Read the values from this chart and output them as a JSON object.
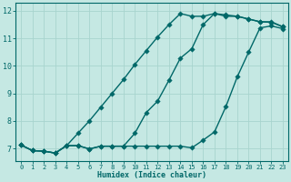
{
  "background_color": "#c5e8e3",
  "grid_color": "#a8d4ce",
  "line_color": "#006868",
  "xlabel": "Humidex (Indice chaleur)",
  "xlim": [
    -0.5,
    23.5
  ],
  "ylim": [
    6.55,
    12.3
  ],
  "yticks": [
    7,
    8,
    9,
    10,
    11,
    12
  ],
  "xticks": [
    0,
    1,
    2,
    3,
    4,
    5,
    6,
    7,
    8,
    9,
    10,
    11,
    12,
    13,
    14,
    15,
    16,
    17,
    18,
    19,
    20,
    21,
    22,
    23
  ],
  "line1_x": [
    0,
    1,
    2,
    3,
    4,
    5,
    6,
    7,
    8,
    9,
    10,
    11,
    12,
    13,
    14,
    15,
    16,
    17,
    18,
    19,
    20,
    21,
    22,
    23
  ],
  "line1_y": [
    7.12,
    6.92,
    6.9,
    6.83,
    7.1,
    7.1,
    6.98,
    7.08,
    7.08,
    7.08,
    7.08,
    7.08,
    7.08,
    7.08,
    7.08,
    7.02,
    7.3,
    7.6,
    8.52,
    9.6,
    10.5,
    11.38,
    11.45,
    11.35
  ],
  "line2_x": [
    0,
    1,
    2,
    3,
    4,
    5,
    6,
    7,
    8,
    9,
    10,
    11,
    12,
    13,
    14,
    15,
    16,
    17,
    18,
    19,
    20,
    21,
    22,
    23
  ],
  "line2_y": [
    7.12,
    6.92,
    6.9,
    6.83,
    7.1,
    7.55,
    8.0,
    8.5,
    9.0,
    9.5,
    10.05,
    10.55,
    11.05,
    11.5,
    11.9,
    11.8,
    11.8,
    11.9,
    11.85,
    11.8,
    11.7,
    11.6,
    11.58,
    11.42
  ],
  "line3_x": [
    0,
    1,
    2,
    3,
    4,
    5,
    6,
    7,
    8,
    9,
    10,
    11,
    12,
    13,
    14,
    15,
    16,
    17,
    18,
    19,
    20,
    21,
    22,
    23
  ],
  "line3_y": [
    7.12,
    6.92,
    6.9,
    6.83,
    7.1,
    7.1,
    6.98,
    7.08,
    7.08,
    7.08,
    7.55,
    8.3,
    8.72,
    9.48,
    10.28,
    10.62,
    11.5,
    11.9,
    11.8,
    11.8,
    11.7,
    11.6,
    11.6,
    11.42
  ]
}
